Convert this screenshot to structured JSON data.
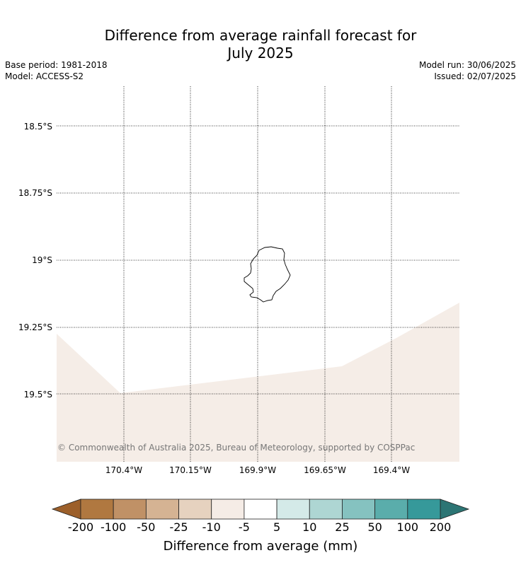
{
  "title_line1": "Difference from average rainfall forecast for",
  "title_line2": "July 2025",
  "base_period": "Base period: 1981-2018",
  "model": "Model: ACCESS-S2",
  "model_run": "Model run: 30/06/2025",
  "issued": "Issued: 02/07/2025",
  "lat_labels": [
    "18.5°S",
    "18.75°S",
    "19°S",
    "19.25°S",
    "19.5°S"
  ],
  "lon_labels": [
    "170.4°W",
    "170.15°W",
    "169.9°W",
    "169.65°W",
    "169.4°W"
  ],
  "credit": "© Commonwealth of Australia 2025, Bureau of Meteorology, supported by COSPPac",
  "colorbar": {
    "title": "Difference from average (mm)",
    "labels": [
      "-200",
      "-100",
      "-50",
      "-25",
      "-10",
      "-5",
      "5",
      "10",
      "25",
      "50",
      "100",
      "200"
    ],
    "under_color": "#9c5f2a",
    "over_color": "#2c7574",
    "colors": [
      "#b07840",
      "#c09166",
      "#d5b393",
      "#e6d2bf",
      "#f5ece6",
      "#ffffff",
      "#d4eae8",
      "#aed6d3",
      "#85c2c0",
      "#5aadab",
      "#36999a"
    ]
  },
  "shaded_region_color": "#f5ede7"
}
